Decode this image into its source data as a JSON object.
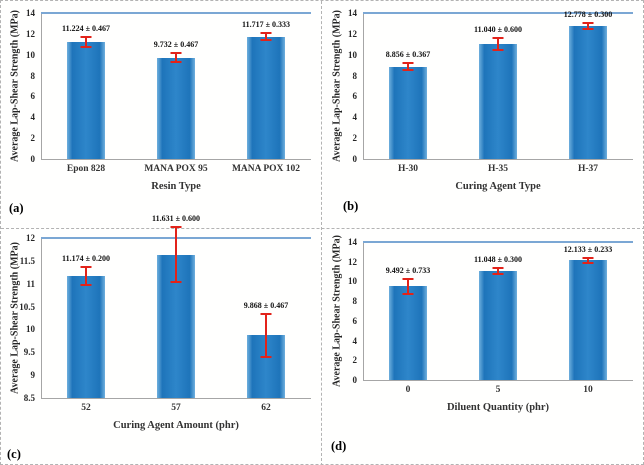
{
  "figure": {
    "background": "#fffffe",
    "border_color_dashed": "#b3b3b3",
    "bar_color": "#2e86ca",
    "bar_edge_color": "#6fb0de",
    "error_bar_color": "#e2231a",
    "plot_top_line_color": "#7ba7d4",
    "axis_line_color": "#a6a6a6",
    "text_color": "#262626"
  },
  "chart_data": [
    {
      "type": "bar",
      "panel_label": "(a)",
      "categories": [
        "Epon 828",
        "MANA POX 95",
        "MANA POX 102"
      ],
      "values": [
        11.224,
        9.732,
        11.717
      ],
      "errors": [
        0.467,
        0.467,
        0.333
      ],
      "value_labels": [
        "11.224 ± 0.467",
        "9.732 ± 0.467",
        "11.717 ± 0.333"
      ],
      "xlabel": "Resin Type",
      "ylabel": "Average Lap-Shear Strength (MPa)",
      "ylim": [
        0,
        14
      ],
      "yticks": [
        "0",
        "2",
        "4",
        "6",
        "8",
        "10",
        "12",
        "14"
      ],
      "grid": false,
      "legend": "none"
    },
    {
      "type": "bar",
      "panel_label": "(b)",
      "categories": [
        "H-30",
        "H-35",
        "H-37"
      ],
      "values": [
        8.856,
        11.04,
        12.778
      ],
      "errors": [
        0.367,
        0.6,
        0.3
      ],
      "value_labels": [
        "8.856 ± 0.367",
        "11.040 ± 0.600",
        "12.778 ± 0.300"
      ],
      "xlabel": "Curing Agent Type",
      "ylabel": "Average Lap-Shear Strength (MPa)",
      "ylim": [
        0,
        14
      ],
      "yticks": [
        "0",
        "2",
        "4",
        "6",
        "8",
        "10",
        "12",
        "14"
      ],
      "grid": false,
      "legend": "none"
    },
    {
      "type": "bar",
      "panel_label": "(c)",
      "categories": [
        "52",
        "57",
        "62"
      ],
      "values": [
        11.174,
        11.631,
        9.868
      ],
      "errors": [
        0.2,
        0.6,
        0.467
      ],
      "value_labels": [
        "11.174 ± 0.200",
        "11.631 ± 0.600",
        "9.868 ± 0.467"
      ],
      "xlabel": "Curing Agent Amount (phr)",
      "ylabel": "Average Lap-Shear Strength (MPa)",
      "ylim": [
        8.5,
        12
      ],
      "yticks": [
        "8.5",
        "9",
        "9.5",
        "10",
        "10.5",
        "11",
        "11.5",
        "12"
      ],
      "grid": false,
      "legend": "none"
    },
    {
      "type": "bar",
      "panel_label": "(d)",
      "categories": [
        "0",
        "5",
        "10"
      ],
      "values": [
        9.492,
        11.048,
        12.133
      ],
      "errors": [
        0.733,
        0.3,
        0.233
      ],
      "value_labels": [
        "9.492 ± 0.733",
        "11.048 ± 0.300",
        "12.133 ± 0.233"
      ],
      "xlabel": "Diluent Quantity (phr)",
      "ylabel": "Average Lap-Shear Strength (MPa)",
      "ylim": [
        0,
        14
      ],
      "yticks": [
        "0",
        "2",
        "4",
        "6",
        "8",
        "10",
        "12",
        "14"
      ],
      "grid": false,
      "legend": "none"
    }
  ]
}
